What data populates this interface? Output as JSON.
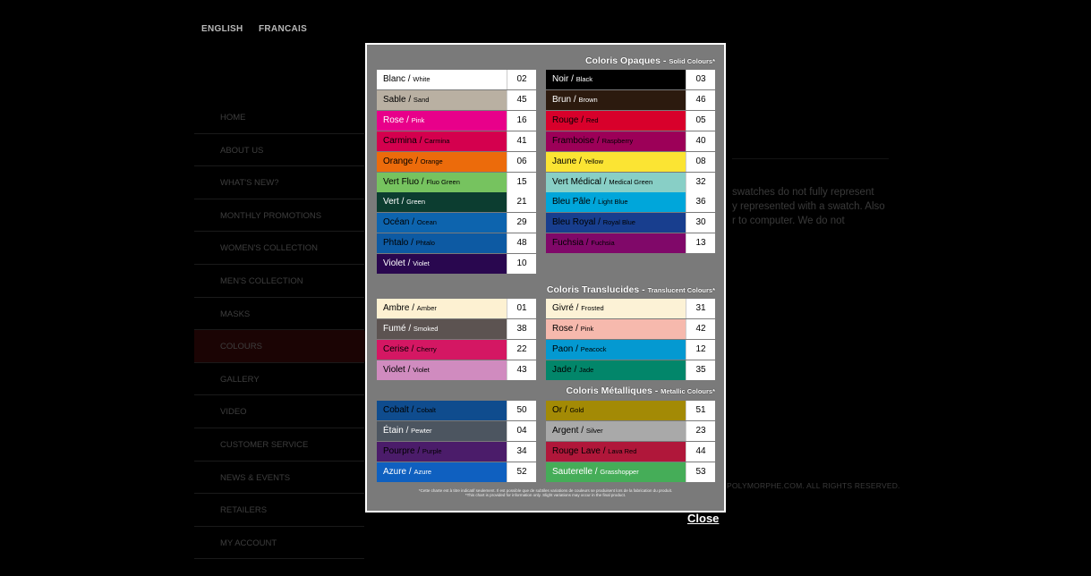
{
  "languages": [
    "ENGLISH",
    "FRANCAIS"
  ],
  "nav": [
    {
      "label": "HOME"
    },
    {
      "label": "ABOUT US"
    },
    {
      "label": "WHAT'S NEW?"
    },
    {
      "label": "MONTHLY PROMOTIONS"
    },
    {
      "label": "WOMEN'S COLLECTION"
    },
    {
      "label": "MEN'S COLLECTION"
    },
    {
      "label": "MASKS"
    },
    {
      "label": "COLOURS",
      "active": true
    },
    {
      "label": "GALLERY"
    },
    {
      "label": "VIDEO"
    },
    {
      "label": "CUSTOMER SERVICE"
    },
    {
      "label": "NEWS & EVENTS"
    },
    {
      "label": "RETAILERS"
    },
    {
      "label": "MY ACCOUNT"
    }
  ],
  "background_text": {
    "lines": [
      "swatches do not fully represent",
      "y represented with a swatch.  Also",
      "r to computer. We do not"
    ],
    "copyright": "POLYMORPHE.COM. ALL RIGHTS RESERVED."
  },
  "chart": {
    "sections": [
      {
        "title": "Coloris Opaques",
        "subtitle": "Solid Colours*",
        "left": [
          {
            "fr": "Blanc",
            "en": "White",
            "code": "02",
            "bg": "#ffffff",
            "fg": "#000000"
          },
          {
            "fr": "Sable",
            "en": "Sand",
            "code": "45",
            "bg": "#b9b0a2",
            "fg": "#000000"
          },
          {
            "fr": "Rose",
            "en": "Pink",
            "code": "16",
            "bg": "#e8008a",
            "fg": "#ffffff"
          },
          {
            "fr": "Carmina",
            "en": "Carmina",
            "code": "41",
            "bg": "#d4004e",
            "fg": "#000000"
          },
          {
            "fr": "Orange",
            "en": "Orange",
            "code": "06",
            "bg": "#ec6b0b",
            "fg": "#000000"
          },
          {
            "fr": "Vert Fluo",
            "en": "Fluo Green",
            "code": "15",
            "bg": "#76c35f",
            "fg": "#000000"
          },
          {
            "fr": "Vert",
            "en": "Green",
            "code": "21",
            "bg": "#0c3d30",
            "fg": "#ffffff"
          },
          {
            "fr": "Océan",
            "en": "Ocean",
            "code": "29",
            "bg": "#0d64ae",
            "fg": "#000000"
          },
          {
            "fr": "Phtalo",
            "en": "Phtalo",
            "code": "48",
            "bg": "#0d5aa3",
            "fg": "#000000"
          },
          {
            "fr": "Violet",
            "en": "Violet",
            "code": "10",
            "bg": "#29074f",
            "fg": "#ffffff"
          }
        ],
        "right": [
          {
            "fr": "Noir",
            "en": "Black",
            "code": "03",
            "bg": "#000000",
            "fg": "#ffffff"
          },
          {
            "fr": "Brun",
            "en": "Brown",
            "code": "46",
            "bg": "#2c1a0e",
            "fg": "#ffffff"
          },
          {
            "fr": "Rouge",
            "en": "Red",
            "code": "05",
            "bg": "#d8002b",
            "fg": "#000000"
          },
          {
            "fr": "Framboise",
            "en": "Raspberry",
            "code": "40",
            "bg": "#9c0058",
            "fg": "#000000"
          },
          {
            "fr": "Jaune",
            "en": "Yellow",
            "code": "08",
            "bg": "#fbe433",
            "fg": "#000000"
          },
          {
            "fr": "Vert Médical",
            "en": "Medical Green",
            "code": "32",
            "bg": "#88cfc6",
            "fg": "#000000"
          },
          {
            "fr": "Bleu Pâle",
            "en": "Light Blue",
            "code": "36",
            "bg": "#00a6da",
            "fg": "#000000"
          },
          {
            "fr": "Bleu Royal",
            "en": "Royal Blue",
            "code": "30",
            "bg": "#183e8e",
            "fg": "#000000"
          },
          {
            "fr": "Fuchsia",
            "en": "Fuchsia",
            "code": "13",
            "bg": "#800869",
            "fg": "#000000"
          }
        ]
      },
      {
        "title": "Coloris Translucides",
        "subtitle": "Translucent Colours*",
        "left": [
          {
            "fr": "Ambre",
            "en": "Amber",
            "code": "01",
            "bg": "#fdf1d2",
            "fg": "#000000"
          },
          {
            "fr": "Fumé",
            "en": "Smoked",
            "code": "38",
            "bg": "#5c5351",
            "fg": "#ffffff"
          },
          {
            "fr": "Cerise",
            "en": "Cherry",
            "code": "22",
            "bg": "#d41763",
            "fg": "#000000"
          },
          {
            "fr": "Violet",
            "en": "Violet",
            "code": "43",
            "bg": "#d08bbf",
            "fg": "#000000"
          }
        ],
        "right": [
          {
            "fr": "Givré",
            "en": "Frosted",
            "code": "31",
            "bg": "#fcf2d6",
            "fg": "#000000"
          },
          {
            "fr": "Rose",
            "en": "Pink",
            "code": "42",
            "bg": "#f6b9ad",
            "fg": "#000000"
          },
          {
            "fr": "Paon",
            "en": "Peacock",
            "code": "12",
            "bg": "#0499d1",
            "fg": "#000000"
          },
          {
            "fr": "Jade",
            "en": "Jade",
            "code": "35",
            "bg": "#02866a",
            "fg": "#000000"
          }
        ]
      },
      {
        "title": "Coloris Métalliques",
        "subtitle": "Metallic Colours*",
        "left": [
          {
            "fr": "Cobalt",
            "en": "Cobalt",
            "code": "50",
            "bg": "#0f4c8e",
            "fg": "#000000"
          },
          {
            "fr": "Étain",
            "en": "Pewter",
            "code": "04",
            "bg": "#4c5560",
            "fg": "#ffffff"
          },
          {
            "fr": "Pourpre",
            "en": "Purple",
            "code": "34",
            "bg": "#4b1c6a",
            "fg": "#000000"
          },
          {
            "fr": "Azure",
            "en": "Azure",
            "code": "52",
            "bg": "#0f60c0",
            "fg": "#ffffff"
          }
        ],
        "right": [
          {
            "fr": "Or",
            "en": "Gold",
            "code": "51",
            "bg": "#a38a05",
            "fg": "#000000"
          },
          {
            "fr": "Argent",
            "en": "Silver",
            "code": "23",
            "bg": "#a9a9a9",
            "fg": "#000000"
          },
          {
            "fr": "Rouge Lave",
            "en": "Lava Red",
            "code": "44",
            "bg": "#b0173a",
            "fg": "#000000"
          },
          {
            "fr": "Sauterelle",
            "en": "Grasshopper",
            "code": "53",
            "bg": "#45ad58",
            "fg": "#ffffff"
          }
        ]
      }
    ],
    "footnote": [
      "*Cette charte est à titre indicatif seulement. Il est possible que de subtiles variations de couleurs se produisent lors de la fabrication du produit.",
      "*This chart is provided for information only. Slight variations may occur in the final product."
    ]
  },
  "close_label": "Close"
}
